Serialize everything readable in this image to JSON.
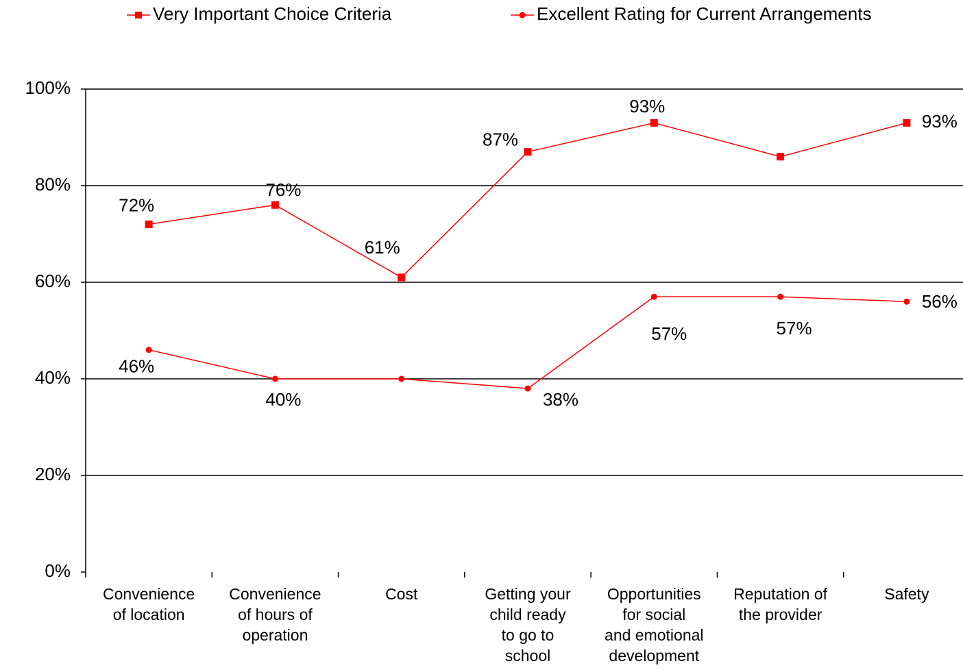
{
  "chart_data": {
    "type": "line",
    "categories": [
      "Convenience of location",
      "Convenience of hours of operation",
      "Cost",
      "Getting your child ready to go to school",
      "Opportunities for social and emotional development",
      "Reputation of the provider",
      "Safety"
    ],
    "series": [
      {
        "name": "Very Important Choice Criteria",
        "color": "#ff0000",
        "marker": "square",
        "values": [
          72,
          76,
          61,
          87,
          93,
          86,
          93
        ],
        "value_labels": [
          "72%",
          "76%",
          "61%",
          "87%",
          "93%",
          null,
          "93%"
        ]
      },
      {
        "name": "Excellent Rating for Current Arrangements",
        "color": "#ff0000",
        "marker": "circle",
        "values": [
          46,
          40,
          40,
          38,
          57,
          57,
          56
        ],
        "value_labels": [
          "46%",
          "40%",
          null,
          "38%",
          "57%",
          "57%",
          "56%"
        ]
      }
    ],
    "ylim": [
      0,
      100
    ],
    "yticks": [
      {
        "value": 0,
        "label": "0%"
      },
      {
        "value": 20,
        "label": "20%"
      },
      {
        "value": 40,
        "label": "40%"
      },
      {
        "value": 60,
        "label": "60%"
      },
      {
        "value": 80,
        "label": "80%"
      },
      {
        "value": 100,
        "label": "100%"
      }
    ],
    "grid": true
  }
}
